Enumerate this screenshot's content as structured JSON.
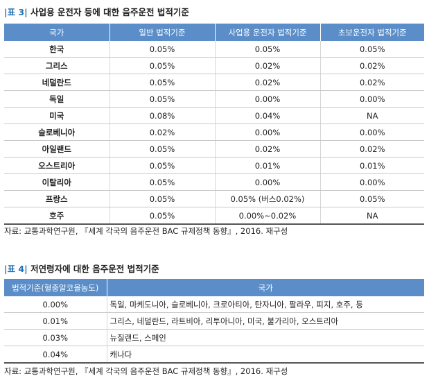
{
  "table3": {
    "caption_prefix": "|",
    "caption_label": "표 3",
    "caption_bracket": "|",
    "caption_title": " 사업용 운전자 등에 대한 음주운전 법적기준",
    "headers": [
      "국가",
      "일반 법적기준",
      "사업용 운전자 법적기준",
      "초보운전자 법적기준"
    ],
    "rows": [
      [
        "한국",
        "0.05%",
        "0.05%",
        "0.05%"
      ],
      [
        "그리스",
        "0.05%",
        "0.02%",
        "0.02%"
      ],
      [
        "네덜란드",
        "0.05%",
        "0.02%",
        "0.02%"
      ],
      [
        "독일",
        "0.05%",
        "0.00%",
        "0.00%"
      ],
      [
        "미국",
        "0.08%",
        "0.04%",
        "NA"
      ],
      [
        "슬로베니아",
        "0.02%",
        "0.00%",
        "0.00%"
      ],
      [
        "아일랜드",
        "0.05%",
        "0.02%",
        "0.02%"
      ],
      [
        "오스트리아",
        "0.05%",
        "0.01%",
        "0.01%"
      ],
      [
        "이탈리아",
        "0.05%",
        "0.00%",
        "0.00%"
      ],
      [
        "프랑스",
        "0.05%",
        "0.05% (버스0.02%)",
        "0.05%"
      ],
      [
        "호주",
        "0.05%",
        "0.00%~0.02%",
        "NA"
      ]
    ],
    "source": "자료: 교통과학연구원, 『세계 각국의 음주운전 BAC 규제정책 동향』, 2016. 재구성"
  },
  "table4": {
    "caption_prefix": "|",
    "caption_label": "표 4",
    "caption_bracket": "|",
    "caption_title": " 저연령자에 대한 음주운전 법적기준",
    "headers": [
      "법적기준(혈중알코올농도)",
      "국가"
    ],
    "rows": [
      [
        "0.00%",
        "독일, 마케도니아, 슬로베니아, 크로아티아, 탄자니아, 팔라우, 피지, 호주, 등"
      ],
      [
        "0.01%",
        "그리스, 네덜란드, 라트비아, 리투아니아, 미국, 불가리아, 오스트리아"
      ],
      [
        "0.03%",
        "뉴질랜드, 스페인"
      ],
      [
        "0.04%",
        "캐나다"
      ]
    ],
    "source": "자료: 교통과학연구원, 『세계 각국의 음주운전 BAC 규제정책 동향』, 2016. 재구성"
  },
  "colors": {
    "header_bg": "#5b8ec9",
    "accent": "#1f6fb2"
  }
}
